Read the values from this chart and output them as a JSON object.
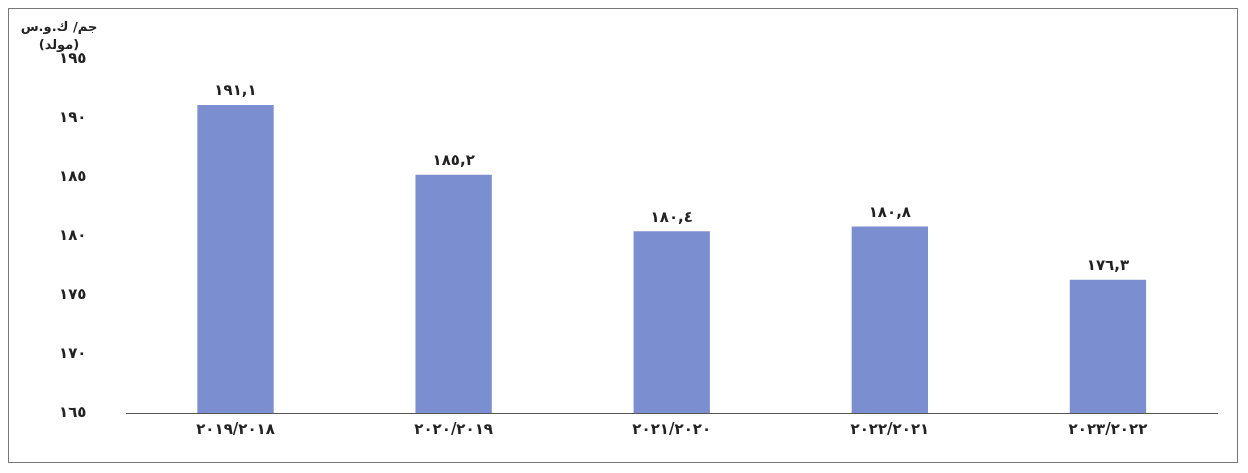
{
  "chart_data": {
    "type": "bar",
    "ylabel": "جم/ ك.و.س\n(مولد)",
    "categories": [
      "٢٠١٩/٢٠١٨",
      "٢٠٢٠/٢٠١٩",
      "٢٠٢١/٢٠٢٠",
      "٢٠٢٢/٢٠٢١",
      "٢٠٢٣/٢٠٢٢"
    ],
    "values": [
      191.1,
      185.2,
      180.4,
      180.8,
      176.3
    ],
    "value_labels": [
      "١٩١,١",
      "١٨٥,٢",
      "١٨٠,٤",
      "١٨٠,٨",
      "١٧٦,٣"
    ],
    "color": "#7b8fd0",
    "ylim": [
      165,
      195
    ],
    "yticks": [
      {
        "value": 165,
        "label": "١٦٥"
      },
      {
        "value": 170,
        "label": "١٧٠"
      },
      {
        "value": 175,
        "label": "١٧٥"
      },
      {
        "value": 180,
        "label": "١٨٠"
      },
      {
        "value": 185,
        "label": "١٨٥"
      },
      {
        "value": 190,
        "label": "١٩٠"
      },
      {
        "value": 195,
        "label": "١٩٥"
      }
    ],
    "grid": false,
    "legend": false
  }
}
